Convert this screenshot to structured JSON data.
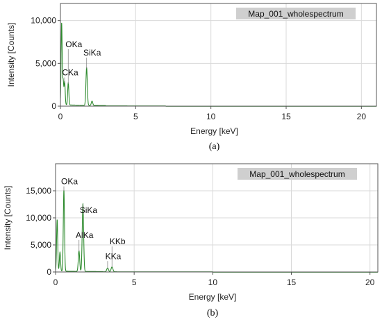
{
  "colors": {
    "spectrum": "#2e8b2e",
    "legend_bg": "#cfcfcf",
    "grid": "#d9d9d9"
  },
  "chart_data": [
    {
      "type": "line",
      "panel_label": "(a)",
      "legend": "Map_001_wholespectrum",
      "xlabel": "Energy [keV]",
      "ylabel": "Intensity [Counts]",
      "xlim": [
        0,
        21
      ],
      "ylim": [
        0,
        12000
      ],
      "xticks": [
        0,
        5,
        10,
        15,
        20
      ],
      "xtick_labels": [
        "0",
        "5",
        "10",
        "15",
        "20"
      ],
      "yticks": [
        0,
        5000,
        10000
      ],
      "ytick_labels": [
        "0",
        "5,000",
        "10,000"
      ],
      "grid": true,
      "spectrum_end": 7.0,
      "peaks": [
        {
          "x": 0.08,
          "y": 9500
        },
        {
          "x": 0.18,
          "y": 2800
        },
        {
          "x": 0.28,
          "y": 2700
        },
        {
          "x": 0.52,
          "y": 2600
        },
        {
          "x": 1.74,
          "y": 4400
        },
        {
          "x": 2.1,
          "y": 500
        }
      ],
      "annotations": [
        {
          "text": "OKa",
          "x": 0.52,
          "y": 6900
        },
        {
          "text": "CKa",
          "x": 0.28,
          "y": 3600
        },
        {
          "text": "SiKa",
          "x": 1.74,
          "y": 5900
        }
      ]
    },
    {
      "type": "line",
      "panel_label": "(b)",
      "legend": "Map_001_wholespectrum",
      "xlabel": "Energy [keV]",
      "ylabel": "Intensity [Counts]",
      "xlim": [
        0,
        20.5
      ],
      "ylim": [
        0,
        20000
      ],
      "xticks": [
        0,
        5,
        10,
        15,
        20
      ],
      "xtick_labels": [
        "0",
        "5",
        "10",
        "15",
        "20"
      ],
      "yticks": [
        0,
        5000,
        10000,
        15000
      ],
      "ytick_labels": [
        "0",
        "5,000",
        "10,000",
        "15,000"
      ],
      "grid": true,
      "spectrum_end": 10.0,
      "peaks": [
        {
          "x": 0.1,
          "y": 9500
        },
        {
          "x": 0.28,
          "y": 3500
        },
        {
          "x": 0.53,
          "y": 15000
        },
        {
          "x": 1.49,
          "y": 3800
        },
        {
          "x": 1.74,
          "y": 12500
        },
        {
          "x": 3.31,
          "y": 700
        },
        {
          "x": 3.59,
          "y": 900
        }
      ],
      "annotations": [
        {
          "text": "OKa",
          "x": 0.53,
          "y": 16200
        },
        {
          "text": "SiKa",
          "x": 1.74,
          "y": 10900
        },
        {
          "text": "AlKa",
          "x": 1.49,
          "y": 6300
        },
        {
          "text": "KKb",
          "x": 3.59,
          "y": 5100
        },
        {
          "text": "KKa",
          "x": 3.31,
          "y": 2400
        }
      ]
    }
  ]
}
